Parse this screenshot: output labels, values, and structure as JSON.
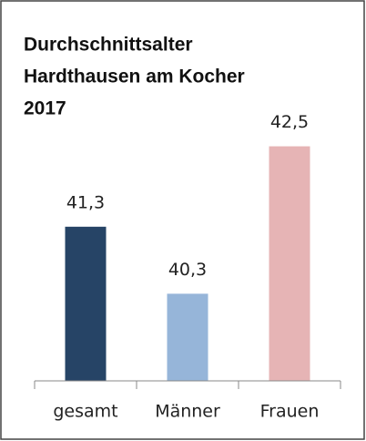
{
  "chart_data": {
    "type": "bar",
    "title": [
      "Durchschnittsalter",
      "Hardthausen am Kocher",
      "2017"
    ],
    "categories": [
      "gesamt",
      "Männer",
      "Frauen"
    ],
    "series": [
      {
        "values": [
          41.3,
          40.3,
          42.5
        ],
        "value_labels": [
          "41,3",
          "40,3",
          "42,5"
        ],
        "colors": [
          "#264466",
          "#96b5d9",
          "#e6b4b5"
        ]
      }
    ],
    "ylim": [
      39,
      43.5
    ]
  }
}
